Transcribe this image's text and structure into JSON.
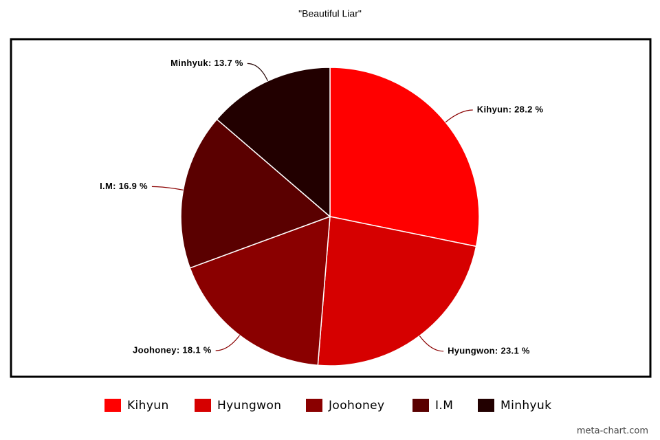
{
  "chart_data": {
    "type": "pie",
    "title": "\"Beautiful Liar\"",
    "categories": [
      "Kihyun",
      "Hyungwon",
      "Joohoney",
      "I.M",
      "Minhyuk"
    ],
    "values": [
      28.2,
      23.1,
      18.1,
      16.9,
      13.7
    ],
    "value_labels": [
      "Kihyun: 28.2 %",
      "Hyungwon: 23.1 %",
      "Joohoney: 18.1 %",
      "I.M: 16.9 %",
      "Minhyuk: 13.7 %"
    ],
    "colors": [
      "#ff0000",
      "#d60000",
      "#8a0000",
      "#5a0000",
      "#220000"
    ],
    "legend": "bottom",
    "credit": "meta-chart.com"
  }
}
